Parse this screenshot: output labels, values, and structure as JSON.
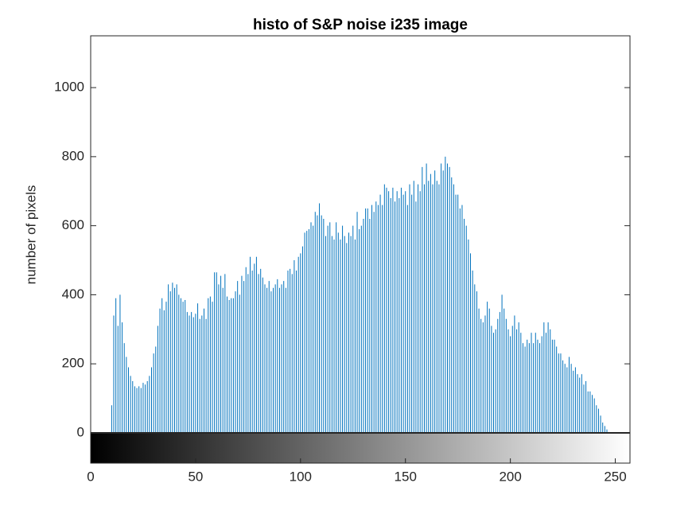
{
  "chart_data": {
    "type": "stem",
    "title": "histo of S&P noise  i235 image",
    "ylabel": "number of pixels",
    "color": "#0072bd",
    "x": [
      0,
      1,
      2,
      3,
      4,
      5,
      6,
      7,
      8,
      9,
      10,
      11,
      12,
      13,
      14,
      15,
      16,
      17,
      18,
      19,
      20,
      21,
      22,
      23,
      24,
      25,
      26,
      27,
      28,
      29,
      30,
      31,
      32,
      33,
      34,
      35,
      36,
      37,
      38,
      39,
      40,
      41,
      42,
      43,
      44,
      45,
      46,
      47,
      48,
      49,
      50,
      51,
      52,
      53,
      54,
      55,
      56,
      57,
      58,
      59,
      60,
      61,
      62,
      63,
      64,
      65,
      66,
      67,
      68,
      69,
      70,
      71,
      72,
      73,
      74,
      75,
      76,
      77,
      78,
      79,
      80,
      81,
      82,
      83,
      84,
      85,
      86,
      87,
      88,
      89,
      90,
      91,
      92,
      93,
      94,
      95,
      96,
      97,
      98,
      99,
      100,
      101,
      102,
      103,
      104,
      105,
      106,
      107,
      108,
      109,
      110,
      111,
      112,
      113,
      114,
      115,
      116,
      117,
      118,
      119,
      120,
      121,
      122,
      123,
      124,
      125,
      126,
      127,
      128,
      129,
      130,
      131,
      132,
      133,
      134,
      135,
      136,
      137,
      138,
      139,
      140,
      141,
      142,
      143,
      144,
      145,
      146,
      147,
      148,
      149,
      150,
      151,
      152,
      153,
      154,
      155,
      156,
      157,
      158,
      159,
      160,
      161,
      162,
      163,
      164,
      165,
      166,
      167,
      168,
      169,
      170,
      171,
      172,
      173,
      174,
      175,
      176,
      177,
      178,
      179,
      180,
      181,
      182,
      183,
      184,
      185,
      186,
      187,
      188,
      189,
      190,
      191,
      192,
      193,
      194,
      195,
      196,
      197,
      198,
      199,
      200,
      201,
      202,
      203,
      204,
      205,
      206,
      207,
      208,
      209,
      210,
      211,
      212,
      213,
      214,
      215,
      216,
      217,
      218,
      219,
      220,
      221,
      222,
      223,
      224,
      225,
      226,
      227,
      228,
      229,
      230,
      231,
      232,
      233,
      234,
      235,
      236,
      237,
      238,
      239,
      240,
      241,
      242,
      243,
      244,
      245,
      246,
      247,
      248,
      249,
      250,
      251,
      252,
      253,
      254,
      255
    ],
    "values": [
      0,
      0,
      0,
      0,
      0,
      0,
      0,
      0,
      0,
      0,
      80,
      340,
      390,
      310,
      400,
      320,
      260,
      220,
      190,
      165,
      150,
      135,
      130,
      135,
      130,
      145,
      140,
      150,
      165,
      190,
      230,
      250,
      310,
      360,
      390,
      355,
      380,
      430,
      410,
      435,
      420,
      430,
      400,
      390,
      380,
      385,
      350,
      340,
      350,
      335,
      345,
      375,
      330,
      340,
      360,
      330,
      390,
      395,
      380,
      465,
      465,
      430,
      455,
      420,
      460,
      395,
      385,
      390,
      390,
      410,
      440,
      400,
      455,
      440,
      480,
      460,
      510,
      470,
      490,
      510,
      460,
      475,
      450,
      430,
      420,
      440,
      410,
      420,
      430,
      445,
      420,
      430,
      440,
      420,
      470,
      475,
      460,
      500,
      470,
      510,
      520,
      540,
      580,
      585,
      590,
      610,
      600,
      640,
      630,
      665,
      630,
      620,
      570,
      600,
      610,
      570,
      560,
      610,
      580,
      560,
      600,
      570,
      550,
      580,
      570,
      600,
      560,
      640,
      590,
      600,
      620,
      650,
      650,
      620,
      660,
      640,
      670,
      660,
      690,
      660,
      720,
      710,
      700,
      680,
      710,
      670,
      700,
      680,
      710,
      690,
      700,
      660,
      720,
      690,
      730,
      670,
      720,
      700,
      770,
      720,
      780,
      730,
      750,
      720,
      760,
      730,
      720,
      780,
      760,
      800,
      780,
      770,
      740,
      720,
      690,
      690,
      650,
      660,
      620,
      600,
      560,
      520,
      470,
      430,
      410,
      360,
      330,
      320,
      340,
      380,
      360,
      310,
      290,
      300,
      330,
      350,
      400,
      360,
      330,
      300,
      280,
      310,
      340,
      300,
      320,
      290,
      260,
      250,
      270,
      260,
      290,
      260,
      290,
      270,
      260,
      280,
      320,
      290,
      320,
      300,
      270,
      270,
      250,
      230,
      230,
      210,
      200,
      190,
      220,
      200,
      180,
      190,
      170,
      160,
      170,
      140,
      150,
      120,
      120,
      110,
      100,
      80,
      70,
      50,
      30,
      20,
      10,
      0,
      0,
      0,
      0,
      0,
      0,
      0,
      0,
      0
    ],
    "xlim": [
      0,
      257
    ],
    "xticks": [
      0,
      50,
      100,
      150,
      200,
      250
    ],
    "ylim": [
      0,
      1150
    ],
    "yticks": [
      0,
      200,
      400,
      600,
      800,
      1000
    ]
  }
}
